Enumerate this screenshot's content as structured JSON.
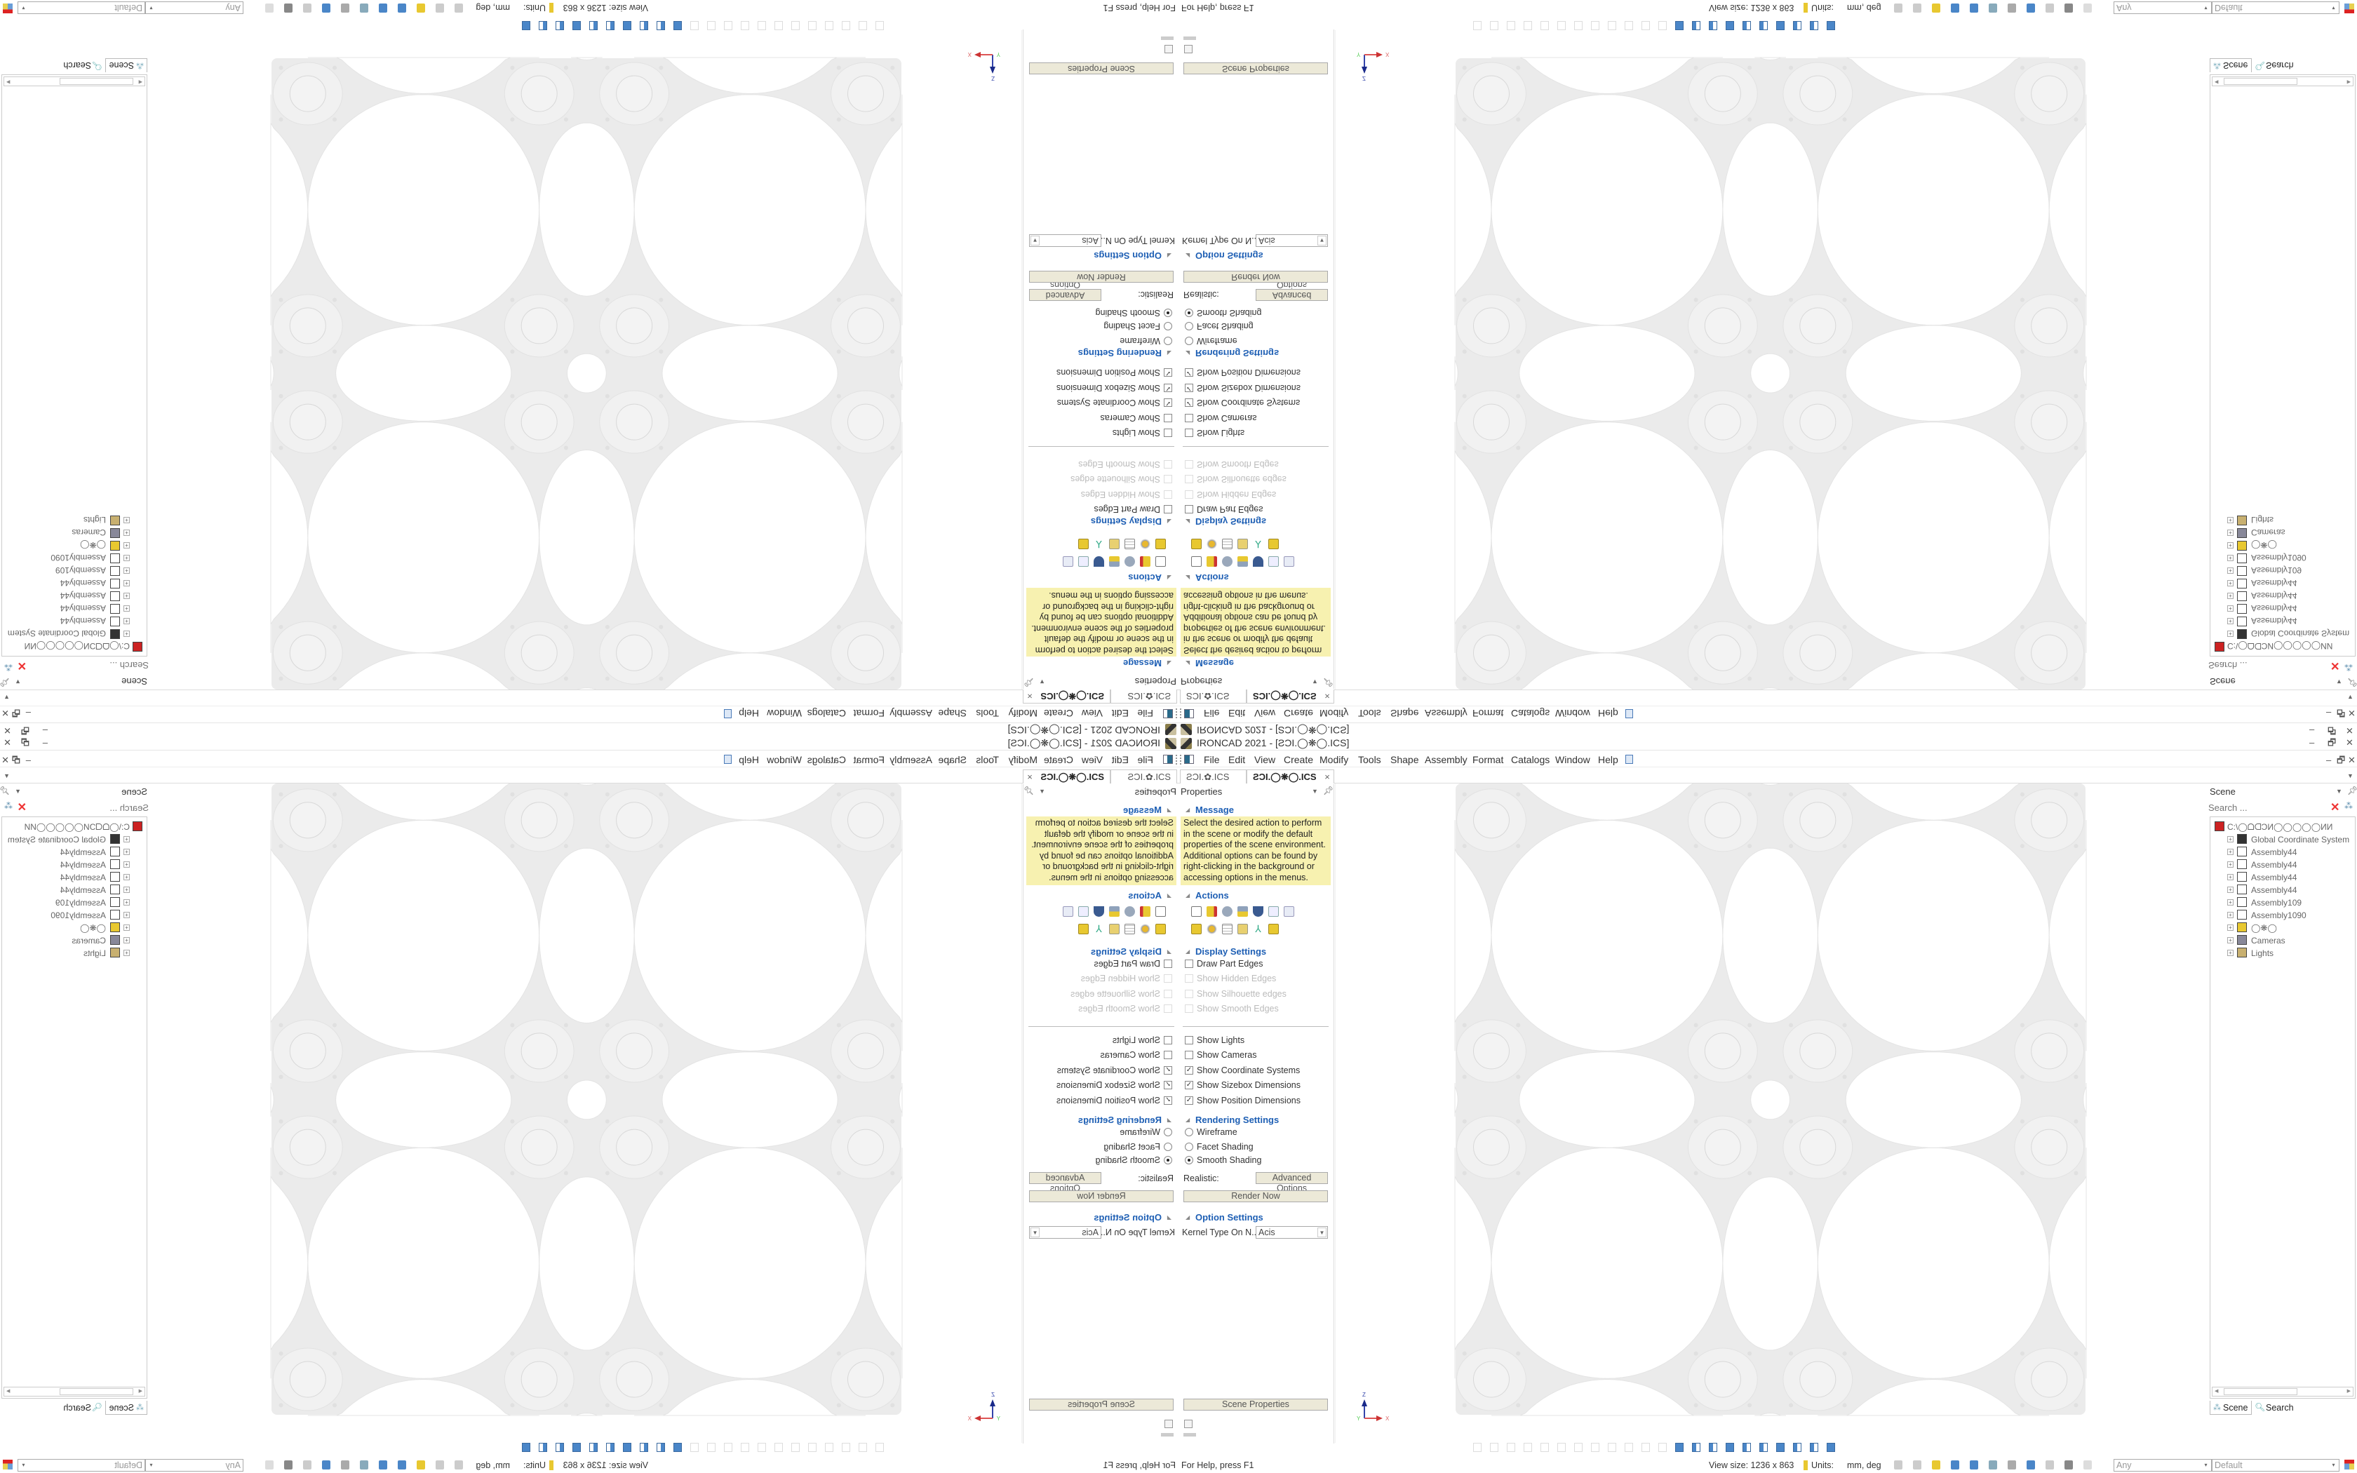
{
  "window": {
    "title": "IRONCAD 2021 - [ƧƆI.◯❋◯.ICS]",
    "minimize": "–",
    "restore": "🗗",
    "close": "✕"
  },
  "menu": {
    "items": [
      "File",
      "Edit",
      "View",
      "Create",
      "Modify",
      "Tools",
      "Shape",
      "Assembly",
      "Format",
      "Catalogs",
      "Window",
      "Help"
    ]
  },
  "doc_tabs": [
    {
      "label": "ƧƆI.✿.ICS",
      "active": false
    },
    {
      "label": "ƧƆI.◯❋◯.ICS",
      "active": true,
      "close": "×"
    }
  ],
  "properties": {
    "title": "Properties",
    "message": {
      "heading": "Message",
      "text": "Select the desired action to perform in the scene or modify the default properties of the scene environment. Additional options can be found by right-clicking in the background or accessing options in the menus."
    },
    "actions": {
      "heading": "Actions"
    },
    "display": {
      "heading": "Display Settings",
      "options": [
        {
          "label": "Draw Part Edges",
          "checked": false,
          "enabled": true
        },
        {
          "label": "Show Hidden Edges",
          "checked": false,
          "enabled": false
        },
        {
          "label": "Show Silhouette edges",
          "checked": false,
          "enabled": false
        },
        {
          "label": "Show Smooth Edges",
          "checked": false,
          "enabled": false
        }
      ],
      "options2": [
        {
          "label": "Show Lights",
          "checked": false
        },
        {
          "label": "Show Cameras",
          "checked": false
        },
        {
          "label": "Show Coordinate Systems",
          "checked": true
        },
        {
          "label": "Show Sizebox Dimensions",
          "checked": true
        },
        {
          "label": "Show Position Dimensions",
          "checked": true
        }
      ]
    },
    "rendering": {
      "heading": "Rendering Settings",
      "modes": [
        {
          "label": "Wireframe",
          "selected": false
        },
        {
          "label": "Facet Shading",
          "selected": false
        },
        {
          "label": "Smooth Shading",
          "selected": true
        }
      ],
      "realistic_label": "Realistic:",
      "advanced_button": "Advanced Options",
      "render_button": "Render Now"
    },
    "option_settings": {
      "heading": "Option Settings",
      "kernel_label": "Kernel Type On N...",
      "kernel_value": "Acis"
    },
    "scene_properties_button": "Scene Properties"
  },
  "viewport": {
    "axis_labels": {
      "z": "Z",
      "y": "Y",
      "x": "X"
    }
  },
  "scene": {
    "title": "Scene",
    "search_placeholder": "Search ...",
    "tree": [
      {
        "label": "C:\\◯ᗝᗡƆИ◯◯◯◯◯ИИ",
        "icon": "scene-root-icon"
      },
      {
        "label": "Global Coordinate System",
        "icon": "coordinate-system-icon"
      },
      {
        "label": "Assembly44",
        "icon": "assembly-icon"
      },
      {
        "label": "Assembly44",
        "icon": "assembly-icon"
      },
      {
        "label": "Assembly44",
        "icon": "assembly-icon"
      },
      {
        "label": "Assembly44",
        "icon": "assembly-icon"
      },
      {
        "label": "Assembly109",
        "icon": "assembly-icon"
      },
      {
        "label": "Assembly1090",
        "icon": "assembly-icon"
      },
      {
        "label": "◯❋◯",
        "icon": "part-icon"
      },
      {
        "label": "Cameras",
        "icon": "camera-icon"
      },
      {
        "label": "Lights",
        "icon": "light-icon"
      }
    ],
    "tabs": [
      "Scene",
      "Search"
    ]
  },
  "status": {
    "help": "For Help, press F1",
    "view_size": "View size: 1236 x 863",
    "units_label": "Units:",
    "units_value": "mm, deg",
    "filter": "Any",
    "style": "Default"
  },
  "colors": {
    "heading": "#1e5fb4",
    "message_bg": "#f7f1b0",
    "button_bg": "#ece9d8",
    "plate": "#ebebeb"
  }
}
